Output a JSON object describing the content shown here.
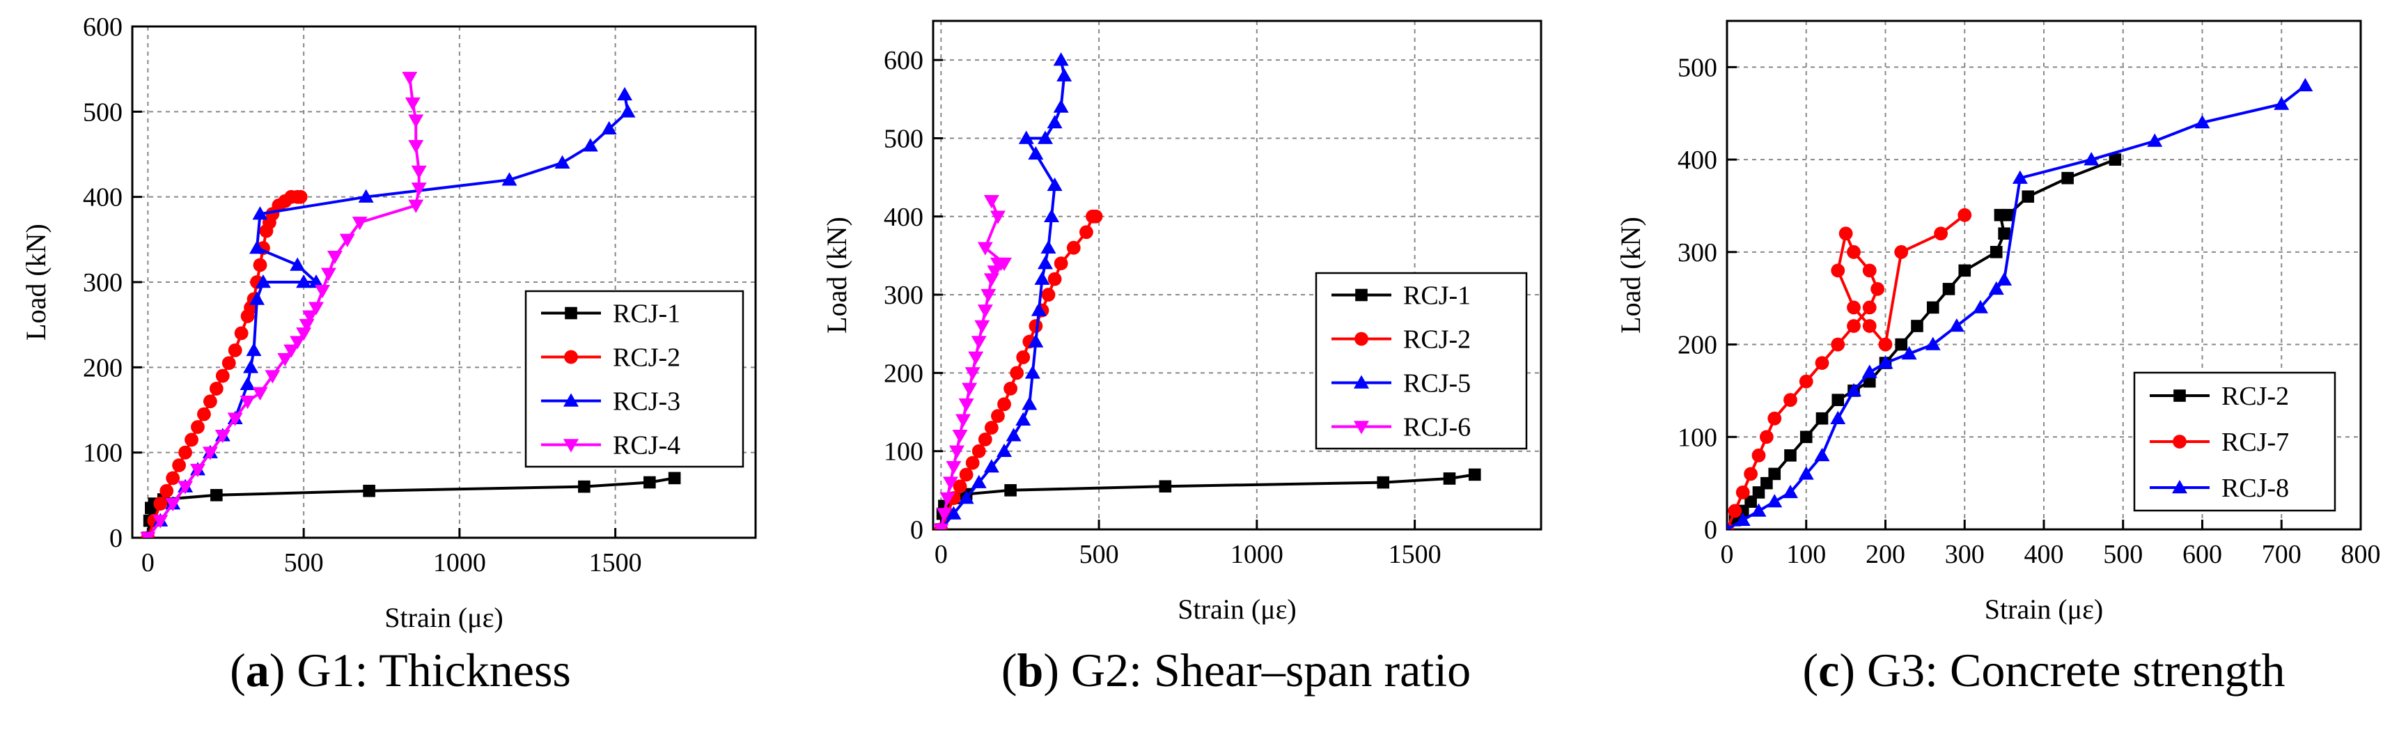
{
  "chart_data": [
    {
      "type": "line",
      "caption": {
        "letter": "a",
        "text": ") G1: Thickness"
      },
      "xlabel": "Strain (με)",
      "ylabel": "Load (kN)",
      "xlim": [
        -50,
        1950
      ],
      "ylim": [
        0,
        600
      ],
      "xticks": [
        0,
        500,
        1000,
        1500
      ],
      "yticks": [
        0,
        100,
        200,
        300,
        400,
        500,
        600
      ],
      "grid": true,
      "legend": "center-right",
      "series": [
        {
          "name": "RCJ-1",
          "color": "#000000",
          "marker": "square",
          "x": [
            0,
            5,
            10,
            20,
            50,
            220,
            710,
            1400,
            1610,
            1690
          ],
          "y": [
            0,
            20,
            35,
            40,
            45,
            50,
            55,
            60,
            65,
            70
          ]
        },
        {
          "name": "RCJ-2",
          "color": "#ff0000",
          "marker": "circle",
          "x": [
            0,
            20,
            40,
            60,
            80,
            100,
            120,
            140,
            160,
            180,
            200,
            220,
            240,
            260,
            280,
            300,
            320,
            330,
            340,
            350,
            360,
            370,
            380,
            390,
            400,
            420,
            440,
            460,
            480,
            490
          ],
          "y": [
            0,
            20,
            40,
            55,
            70,
            85,
            100,
            115,
            130,
            145,
            160,
            175,
            190,
            205,
            220,
            240,
            260,
            270,
            280,
            300,
            320,
            340,
            360,
            370,
            380,
            390,
            395,
            400,
            400,
            400
          ]
        },
        {
          "name": "RCJ-3",
          "color": "#0000ff",
          "marker": "triangle-up",
          "x": [
            0,
            40,
            80,
            120,
            160,
            200,
            240,
            280,
            320,
            330,
            340,
            350,
            370,
            500,
            540,
            480,
            350,
            360,
            700,
            1160,
            1330,
            1420,
            1480,
            1540,
            1530
          ],
          "y": [
            0,
            20,
            40,
            60,
            80,
            100,
            120,
            140,
            180,
            200,
            220,
            280,
            300,
            300,
            300,
            320,
            340,
            380,
            400,
            420,
            440,
            460,
            480,
            500,
            520
          ]
        },
        {
          "name": "RCJ-4",
          "color": "#ff00ff",
          "marker": "triangle-down",
          "x": [
            0,
            40,
            80,
            120,
            160,
            200,
            240,
            280,
            320,
            360,
            400,
            440,
            460,
            480,
            500,
            510,
            520,
            540,
            560,
            580,
            600,
            640,
            680,
            860,
            870,
            870,
            860,
            860,
            850,
            840
          ],
          "y": [
            0,
            20,
            40,
            60,
            80,
            100,
            120,
            140,
            160,
            170,
            190,
            210,
            220,
            230,
            240,
            250,
            260,
            270,
            290,
            310,
            330,
            350,
            370,
            390,
            410,
            430,
            460,
            490,
            510,
            540
          ]
        }
      ]
    },
    {
      "type": "line",
      "caption": {
        "letter": "b",
        "text": ") G2: Shear–span ratio"
      },
      "xlabel": "Strain (με)",
      "ylabel": "Load (kN)",
      "xlim": [
        -25,
        1900
      ],
      "ylim": [
        0,
        650
      ],
      "xticks": [
        0,
        500,
        1000,
        1500
      ],
      "yticks": [
        0,
        100,
        200,
        300,
        400,
        500,
        600
      ],
      "grid": true,
      "legend": "center-right",
      "series": [
        {
          "name": "RCJ-1",
          "color": "#000000",
          "marker": "square",
          "x": [
            0,
            5,
            10,
            40,
            80,
            220,
            710,
            1400,
            1610,
            1690
          ],
          "y": [
            0,
            20,
            30,
            40,
            45,
            50,
            55,
            60,
            65,
            70
          ]
        },
        {
          "name": "RCJ-2",
          "color": "#ff0000",
          "marker": "circle",
          "x": [
            0,
            20,
            40,
            60,
            80,
            100,
            120,
            140,
            160,
            180,
            200,
            220,
            240,
            260,
            280,
            300,
            320,
            340,
            360,
            380,
            420,
            460,
            480,
            490
          ],
          "y": [
            0,
            20,
            40,
            55,
            70,
            85,
            100,
            115,
            130,
            145,
            160,
            180,
            200,
            220,
            240,
            260,
            280,
            300,
            320,
            340,
            360,
            380,
            400,
            400
          ]
        },
        {
          "name": "RCJ-5",
          "color": "#0000ff",
          "marker": "triangle-up",
          "x": [
            0,
            40,
            80,
            120,
            160,
            200,
            230,
            260,
            280,
            290,
            300,
            310,
            320,
            330,
            340,
            350,
            360,
            300,
            270,
            330,
            360,
            380,
            390,
            380
          ],
          "y": [
            0,
            20,
            40,
            60,
            80,
            100,
            120,
            140,
            160,
            200,
            240,
            280,
            320,
            340,
            360,
            400,
            440,
            480,
            500,
            500,
            520,
            540,
            580,
            600
          ]
        },
        {
          "name": "RCJ-6",
          "color": "#ff00ff",
          "marker": "triangle-down",
          "x": [
            0,
            10,
            20,
            30,
            40,
            50,
            60,
            70,
            80,
            90,
            100,
            110,
            120,
            130,
            140,
            150,
            160,
            170,
            180,
            190,
            200,
            140,
            180,
            160
          ],
          "y": [
            0,
            20,
            40,
            60,
            80,
            100,
            120,
            140,
            160,
            180,
            200,
            220,
            240,
            260,
            280,
            300,
            320,
            330,
            340,
            340,
            340,
            360,
            400,
            420
          ]
        }
      ]
    },
    {
      "type": "line",
      "caption": {
        "letter": "c",
        "text": ") G3: Concrete strength"
      },
      "xlabel": "Strain (με)",
      "ylabel": "Load (kN)",
      "xlim": [
        0,
        800
      ],
      "ylim": [
        0,
        550
      ],
      "xticks": [
        0,
        100,
        200,
        300,
        400,
        500,
        600,
        700,
        800
      ],
      "yticks": [
        0,
        100,
        200,
        300,
        400,
        500
      ],
      "grid": true,
      "legend": "bottom-right",
      "series": [
        {
          "name": "RCJ-2",
          "color": "#000000",
          "marker": "square",
          "x": [
            0,
            10,
            20,
            30,
            40,
            50,
            60,
            80,
            100,
            120,
            140,
            160,
            180,
            200,
            220,
            240,
            260,
            280,
            300,
            340,
            350,
            345,
            355,
            380,
            430,
            490
          ],
          "y": [
            0,
            10,
            20,
            30,
            40,
            50,
            60,
            80,
            100,
            120,
            140,
            150,
            160,
            180,
            200,
            220,
            240,
            260,
            280,
            300,
            320,
            340,
            340,
            360,
            380,
            400
          ]
        },
        {
          "name": "RCJ-7",
          "color": "#ff0000",
          "marker": "circle",
          "x": [
            0,
            10,
            20,
            30,
            40,
            50,
            60,
            80,
            100,
            120,
            140,
            160,
            180,
            190,
            180,
            160,
            150,
            140,
            160,
            180,
            200,
            220,
            270,
            300
          ],
          "y": [
            0,
            20,
            40,
            60,
            80,
            100,
            120,
            140,
            160,
            180,
            200,
            220,
            240,
            260,
            280,
            300,
            320,
            280,
            240,
            220,
            200,
            300,
            320,
            340
          ]
        },
        {
          "name": "RCJ-8",
          "color": "#0000ff",
          "marker": "triangle-up",
          "x": [
            0,
            20,
            40,
            60,
            80,
            100,
            120,
            140,
            160,
            180,
            200,
            230,
            260,
            290,
            320,
            340,
            350,
            370,
            460,
            540,
            600,
            700,
            730
          ],
          "y": [
            0,
            10,
            20,
            30,
            40,
            60,
            80,
            120,
            150,
            170,
            180,
            190,
            200,
            220,
            240,
            260,
            270,
            380,
            400,
            420,
            440,
            460,
            480
          ]
        }
      ]
    }
  ]
}
